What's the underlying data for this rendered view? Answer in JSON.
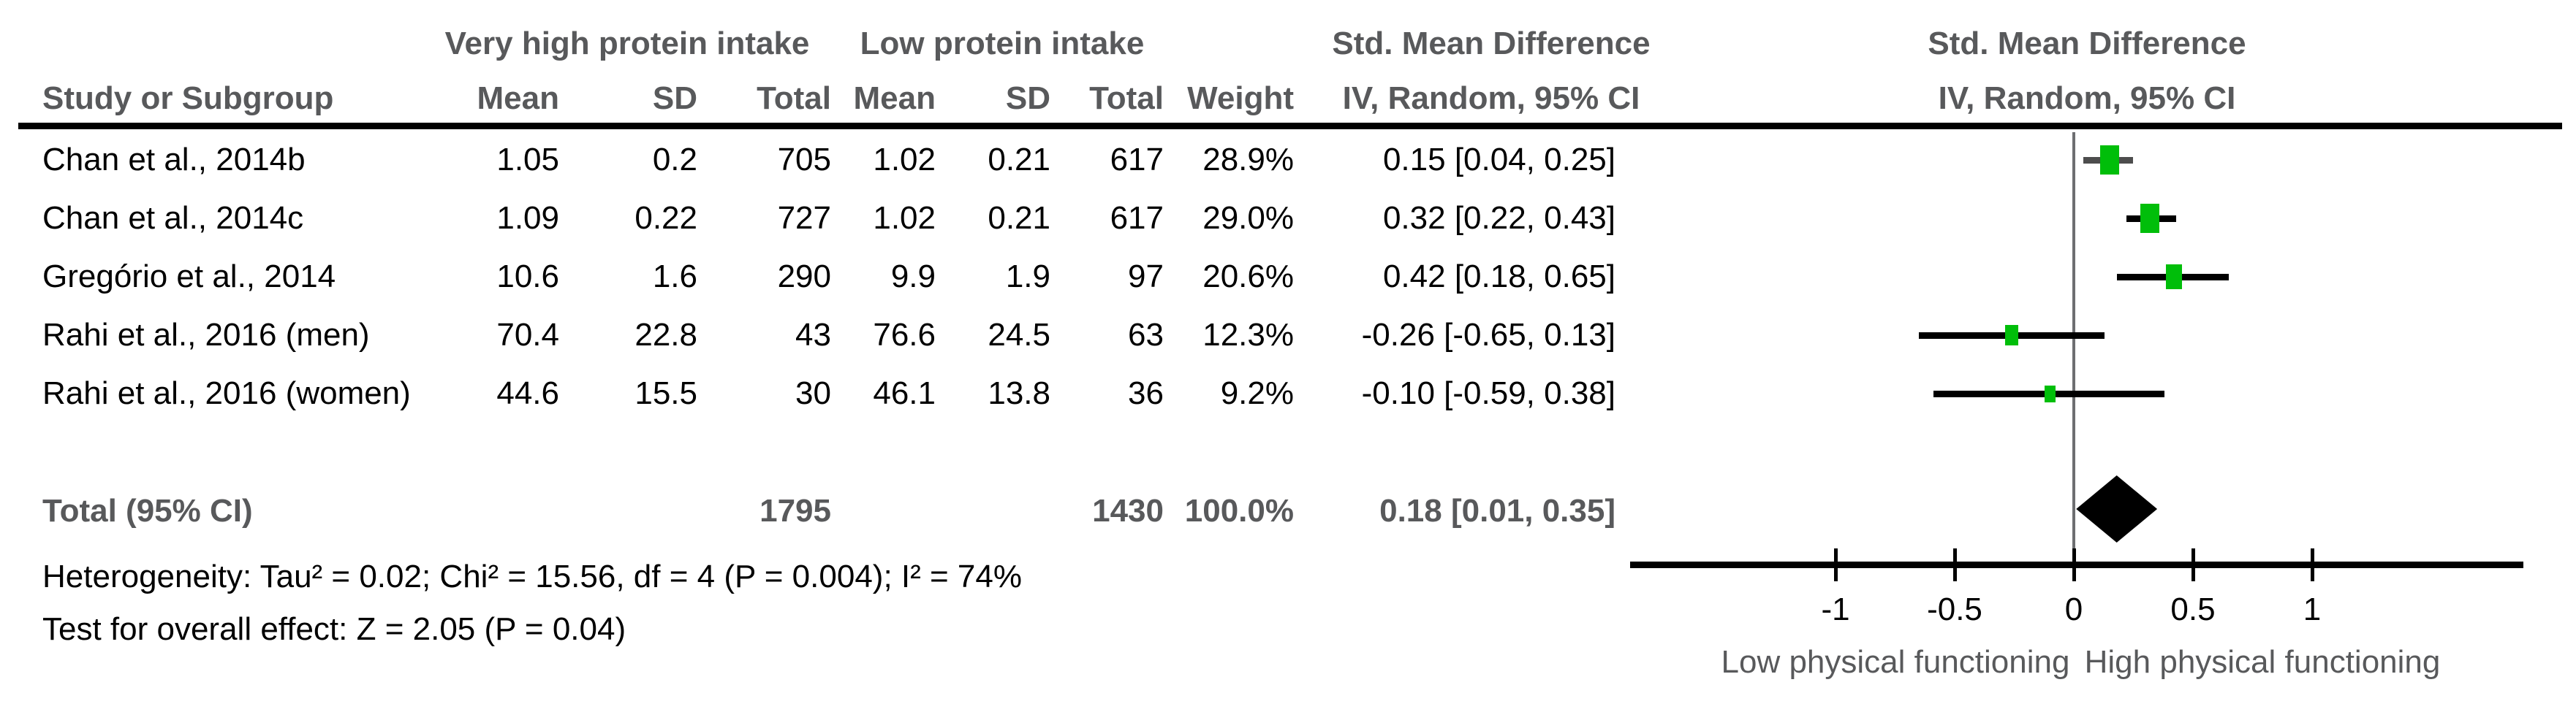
{
  "header": {
    "group1": "Very high protein intake",
    "group2": "Low protein intake",
    "smd": "Std. Mean Difference",
    "method": "IV, Random, 95% CI",
    "study": "Study or Subgroup",
    "mean": "Mean",
    "sd": "SD",
    "total": "Total",
    "weight": "Weight"
  },
  "table": {
    "rows": [
      {
        "study": "Chan et al., 2014b",
        "mean1": "1.05",
        "sd1": "0.2",
        "total1": "705",
        "mean2": "1.02",
        "sd2": "0.21",
        "total2": "617",
        "weight": "28.9%",
        "ci_text": "0.15 [0.04, 0.25]"
      },
      {
        "study": "Chan et al., 2014c",
        "mean1": "1.09",
        "sd1": "0.22",
        "total1": "727",
        "mean2": "1.02",
        "sd2": "0.21",
        "total2": "617",
        "weight": "29.0%",
        "ci_text": "0.32 [0.22, 0.43]"
      },
      {
        "study": "Gregório et al., 2014",
        "mean1": "10.6",
        "sd1": "1.6",
        "total1": "290",
        "mean2": "9.9",
        "sd2": "1.9",
        "total2": "97",
        "weight": "20.6%",
        "ci_text": "0.42 [0.18, 0.65]"
      },
      {
        "study": "Rahi et al., 2016 (men)",
        "mean1": "70.4",
        "sd1": "22.8",
        "total1": "43",
        "mean2": "76.6",
        "sd2": "24.5",
        "total2": "63",
        "weight": "12.3%",
        "ci_text": "-0.26 [-0.65, 0.13]"
      },
      {
        "study": "Rahi et al., 2016 (women)",
        "mean1": "44.6",
        "sd1": "15.5",
        "total1": "30",
        "mean2": "46.1",
        "sd2": "13.8",
        "total2": "36",
        "weight": "9.2%",
        "ci_text": "-0.10 [-0.59, 0.38]"
      }
    ],
    "total_row": {
      "label": "Total (95% CI)",
      "total1": "1795",
      "total2": "1430",
      "weight": "100.0%",
      "ci_text": "0.18 [0.01, 0.35]"
    },
    "footnotes": {
      "heterogeneity": "Heterogeneity: Tau² = 0.02; Chi² = 15.56, df = 4 (P = 0.004); I² = 74%",
      "overall_effect": "Test for overall effect: Z = 2.05 (P = 0.04)"
    }
  },
  "axis": {
    "tick_labels": [
      "-1",
      "-0.5",
      "0",
      "0.5",
      "1"
    ],
    "left_caption": "Low physical functioning",
    "right_caption": "High physical functioning"
  },
  "colors": {
    "square_green": "#00be0a",
    "diamond_black": "#000000",
    "ci_black": "#000000",
    "ci_gray_row1": "#4d4d4d",
    "header_gray": "#58595b",
    "zero_line_gray": "#6d6e71"
  },
  "chart_data": {
    "type": "forest",
    "effect_measure": "Std. Mean Difference",
    "method": "IV, Random, 95% CI",
    "studies": [
      {
        "name": "Chan et al., 2014b",
        "exp_mean": 1.05,
        "exp_sd": 0.2,
        "exp_total": 705,
        "ctrl_mean": 1.02,
        "ctrl_sd": 0.21,
        "ctrl_total": 617,
        "weight_pct": 28.9,
        "smd": 0.15,
        "ci_low": 0.04,
        "ci_high": 0.25
      },
      {
        "name": "Chan et al., 2014c",
        "exp_mean": 1.09,
        "exp_sd": 0.22,
        "exp_total": 727,
        "ctrl_mean": 1.02,
        "ctrl_sd": 0.21,
        "ctrl_total": 617,
        "weight_pct": 29.0,
        "smd": 0.32,
        "ci_low": 0.22,
        "ci_high": 0.43
      },
      {
        "name": "Gregório et al., 2014",
        "exp_mean": 10.6,
        "exp_sd": 1.6,
        "exp_total": 290,
        "ctrl_mean": 9.9,
        "ctrl_sd": 1.9,
        "ctrl_total": 97,
        "weight_pct": 20.6,
        "smd": 0.42,
        "ci_low": 0.18,
        "ci_high": 0.65
      },
      {
        "name": "Rahi et al., 2016 (men)",
        "exp_mean": 70.4,
        "exp_sd": 22.8,
        "exp_total": 43,
        "ctrl_mean": 76.6,
        "ctrl_sd": 24.5,
        "ctrl_total": 63,
        "weight_pct": 12.3,
        "smd": -0.26,
        "ci_low": -0.65,
        "ci_high": 0.13
      },
      {
        "name": "Rahi et al., 2016 (women)",
        "exp_mean": 44.6,
        "exp_sd": 15.5,
        "exp_total": 30,
        "ctrl_mean": 46.1,
        "ctrl_sd": 13.8,
        "ctrl_total": 36,
        "weight_pct": 9.2,
        "smd": -0.1,
        "ci_low": -0.59,
        "ci_high": 0.38
      }
    ],
    "total": {
      "label": "Total (95% CI)",
      "exp_total": 1795,
      "ctrl_total": 1430,
      "weight_pct": 100.0,
      "smd": 0.18,
      "ci_low": 0.01,
      "ci_high": 0.35
    },
    "heterogeneity": {
      "tau2": 0.02,
      "chi2": 15.56,
      "df": 4,
      "p": 0.004,
      "i2_pct": 74
    },
    "overall_effect": {
      "z": 2.05,
      "p": 0.04
    },
    "x_axis": {
      "ticks": [
        -1,
        -0.5,
        0,
        0.5,
        1
      ],
      "range": [
        -1.86,
        1.89
      ],
      "zero_at": 0
    },
    "direction_labels": {
      "left": "Low physical functioning",
      "right": "High physical functioning"
    },
    "legend_position": "none",
    "grid": false
  }
}
